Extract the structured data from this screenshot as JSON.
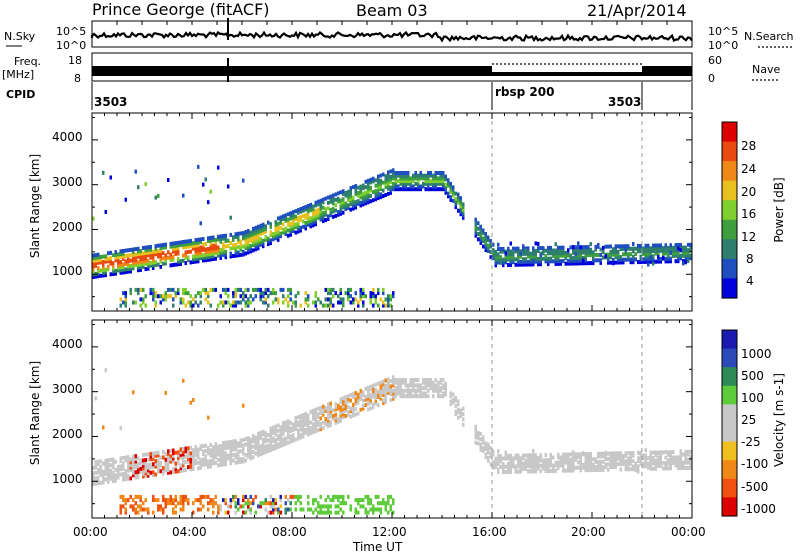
{
  "header": {
    "station": "Prince George (fitACF)",
    "beam": "Beam 03",
    "date": "21/Apr/2014"
  },
  "strip_labels": {
    "nsky": "N.Sky",
    "nsearch": "N.Search",
    "freq_line1": "Freq.",
    "freq_line2": "[MHz]",
    "nave": "Nave",
    "cpid": "CPID",
    "nsky_ticks": [
      "10^5",
      "10^0"
    ],
    "nsearch_ticks": [
      "10^5",
      "10^0"
    ],
    "freq_ticks": [
      "18",
      "8"
    ],
    "nave_ticks": [
      "60",
      "0"
    ]
  },
  "cpid_segments": [
    {
      "label": "3503",
      "start_h": 0.0,
      "end_h": 16.0
    },
    {
      "label": "rbsp 200",
      "start_h": 16.0,
      "end_h": 22.0
    },
    {
      "label": "3503",
      "start_h": 22.0,
      "end_h": 24.0
    }
  ],
  "chart_data": [
    {
      "type": "heatmap",
      "panel": "power",
      "xlabel": "",
      "ylabel": "Slant Range [km]",
      "xlim_h": [
        0,
        24
      ],
      "ylim": [
        180,
        4600
      ],
      "yticks": [
        "1000",
        "2000",
        "3000",
        "4000"
      ],
      "colorbar_label": "Power [dB]",
      "colorbar_ticks": [
        "28",
        "24",
        "20",
        "16",
        "12",
        "8",
        "4"
      ],
      "colorbar_colors": [
        "#0000dd",
        "#1f4fbf",
        "#2f7f6f",
        "#3f9f3f",
        "#7fcf2f",
        "#e8c020",
        "#f08818",
        "#e84a10",
        "#dd0000"
      ],
      "features": [
        {
          "name": "main-backscatter-band",
          "note": "strong echoes rising from ~1200 km at 00:00 to ~3100 km near 12:00, descending after 14:00",
          "peak_db": 28
        },
        {
          "name": "near-range-echoes",
          "note": "~300-700 km, 01:00-12:00"
        },
        {
          "name": "evening-band",
          "note": "~1000-1600 km, 16:00-24:00"
        }
      ]
    },
    {
      "type": "heatmap",
      "panel": "velocity",
      "xlabel": "Time UT",
      "ylabel": "Slant Range [km]",
      "xlim_h": [
        0,
        24
      ],
      "ylim": [
        180,
        4600
      ],
      "xticks": [
        "00:00",
        "04:00",
        "08:00",
        "12:00",
        "16:00",
        "20:00",
        "00:00"
      ],
      "yticks": [
        "1000",
        "2000",
        "3000",
        "4000"
      ],
      "colorbar_label": "Velocity [m s-1]",
      "colorbar_ticks": [
        "1000",
        "500",
        "100",
        "25",
        "-25",
        "-100",
        "-500",
        "-1000"
      ],
      "colorbar_colors": [
        "#1a1ab0",
        "#2b4cb8",
        "#2e8b57",
        "#5ecb3a",
        "#c8c8c8",
        "#c8c8c8",
        "#f0c020",
        "#f08818",
        "#f05010",
        "#dd0000"
      ],
      "features": [
        {
          "name": "ground-scatter-band",
          "note": "grey, follows main band in power panel"
        },
        {
          "name": "negative-velocity-patches",
          "note": "orange/red, 02:00-04:00 near 700-1500 km"
        },
        {
          "name": "positive-velocity-patches",
          "note": "green, 08:00-14:00 near 400-600 km"
        }
      ]
    }
  ]
}
